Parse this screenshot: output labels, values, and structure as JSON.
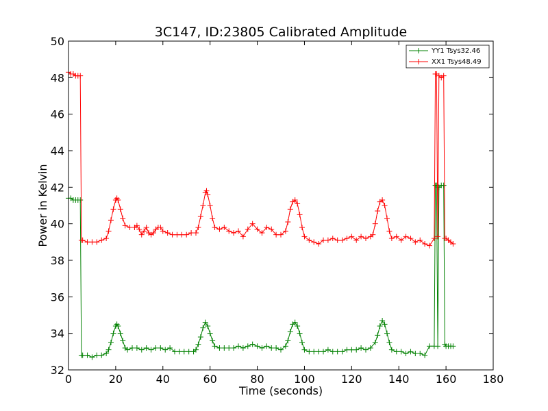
{
  "chart_data": {
    "type": "line",
    "title": "3C147, ID:23805 Calibrated Amplitude",
    "xlabel": "Time (seconds)",
    "ylabel": "Power in Kelvin",
    "xlim": [
      0,
      180
    ],
    "ylim": [
      32,
      50
    ],
    "xticks": [
      0,
      20,
      40,
      60,
      80,
      100,
      120,
      140,
      160,
      180
    ],
    "yticks": [
      32,
      34,
      36,
      38,
      40,
      42,
      44,
      46,
      48,
      50
    ],
    "grid": false,
    "legend_position": "top-right",
    "marker": "+",
    "series": [
      {
        "name": "YY1 Tsys32.46",
        "color": "#008000",
        "points": [
          [
            0,
            41.4
          ],
          [
            1,
            41.4
          ],
          [
            2,
            41.3
          ],
          [
            3,
            41.3
          ],
          [
            4,
            41.3
          ],
          [
            5,
            41.3
          ],
          [
            5.5,
            32.8
          ],
          [
            6,
            32.8
          ],
          [
            8,
            32.8
          ],
          [
            10,
            32.7
          ],
          [
            12,
            32.8
          ],
          [
            14,
            32.8
          ],
          [
            16,
            32.9
          ],
          [
            17,
            33.1
          ],
          [
            18,
            33.5
          ],
          [
            19,
            34.0
          ],
          [
            20,
            34.4
          ],
          [
            20.5,
            34.5
          ],
          [
            21,
            34.4
          ],
          [
            22,
            34.0
          ],
          [
            23,
            33.6
          ],
          [
            24,
            33.2
          ],
          [
            25,
            33.1
          ],
          [
            27,
            33.2
          ],
          [
            29,
            33.2
          ],
          [
            31,
            33.1
          ],
          [
            33,
            33.2
          ],
          [
            35,
            33.1
          ],
          [
            37,
            33.2
          ],
          [
            39,
            33.2
          ],
          [
            41,
            33.1
          ],
          [
            43,
            33.2
          ],
          [
            45,
            33.0
          ],
          [
            47,
            33.0
          ],
          [
            49,
            33.0
          ],
          [
            51,
            33.0
          ],
          [
            53,
            33.0
          ],
          [
            54,
            33.1
          ],
          [
            55,
            33.4
          ],
          [
            56,
            33.8
          ],
          [
            57,
            34.3
          ],
          [
            58,
            34.6
          ],
          [
            59,
            34.4
          ],
          [
            60,
            34.0
          ],
          [
            61,
            33.6
          ],
          [
            62,
            33.3
          ],
          [
            64,
            33.2
          ],
          [
            66,
            33.2
          ],
          [
            68,
            33.2
          ],
          [
            70,
            33.2
          ],
          [
            72,
            33.3
          ],
          [
            74,
            33.2
          ],
          [
            76,
            33.3
          ],
          [
            78,
            33.4
          ],
          [
            80,
            33.3
          ],
          [
            82,
            33.2
          ],
          [
            84,
            33.3
          ],
          [
            86,
            33.2
          ],
          [
            88,
            33.2
          ],
          [
            90,
            33.1
          ],
          [
            92,
            33.3
          ],
          [
            93,
            33.6
          ],
          [
            94,
            34.1
          ],
          [
            95,
            34.5
          ],
          [
            96,
            34.6
          ],
          [
            97,
            34.4
          ],
          [
            98,
            34.0
          ],
          [
            99,
            33.5
          ],
          [
            100,
            33.1
          ],
          [
            102,
            33.0
          ],
          [
            104,
            33.0
          ],
          [
            106,
            33.0
          ],
          [
            108,
            33.0
          ],
          [
            110,
            33.1
          ],
          [
            112,
            33.0
          ],
          [
            114,
            33.0
          ],
          [
            116,
            33.0
          ],
          [
            118,
            33.1
          ],
          [
            120,
            33.1
          ],
          [
            122,
            33.1
          ],
          [
            124,
            33.2
          ],
          [
            126,
            33.1
          ],
          [
            128,
            33.2
          ],
          [
            130,
            33.5
          ],
          [
            131,
            33.9
          ],
          [
            132,
            34.4
          ],
          [
            133,
            34.7
          ],
          [
            134,
            34.5
          ],
          [
            135,
            34.0
          ],
          [
            136,
            33.5
          ],
          [
            137,
            33.1
          ],
          [
            139,
            33.0
          ],
          [
            141,
            33.0
          ],
          [
            143,
            32.9
          ],
          [
            145,
            33.0
          ],
          [
            147,
            32.9
          ],
          [
            149,
            32.9
          ],
          [
            151,
            32.8
          ],
          [
            153,
            33.3
          ],
          [
            155,
            33.3
          ],
          [
            155.5,
            42.1
          ],
          [
            156,
            42.1
          ],
          [
            156.5,
            33.3
          ],
          [
            157,
            42.0
          ],
          [
            158,
            42.1
          ],
          [
            159,
            42.1
          ],
          [
            159.5,
            33.4
          ],
          [
            160,
            33.3
          ],
          [
            161,
            33.3
          ],
          [
            162,
            33.3
          ],
          [
            163,
            33.3
          ]
        ]
      },
      {
        "name": "XX1 Tsys48.49",
        "color": "#ff0000",
        "points": [
          [
            0,
            48.3
          ],
          [
            1,
            48.2
          ],
          [
            2,
            48.2
          ],
          [
            3,
            48.1
          ],
          [
            4,
            48.1
          ],
          [
            5,
            48.1
          ],
          [
            5.5,
            39.1
          ],
          [
            6,
            39.1
          ],
          [
            8,
            39.0
          ],
          [
            10,
            39.0
          ],
          [
            12,
            39.0
          ],
          [
            14,
            39.1
          ],
          [
            16,
            39.2
          ],
          [
            17,
            39.6
          ],
          [
            18,
            40.2
          ],
          [
            19,
            40.8
          ],
          [
            20,
            41.3
          ],
          [
            20.5,
            41.4
          ],
          [
            21,
            41.3
          ],
          [
            22,
            40.8
          ],
          [
            23,
            40.3
          ],
          [
            24,
            39.9
          ],
          [
            26,
            39.8
          ],
          [
            28,
            39.8
          ],
          [
            29,
            39.9
          ],
          [
            30,
            39.7
          ],
          [
            31,
            39.4
          ],
          [
            32,
            39.6
          ],
          [
            33,
            39.8
          ],
          [
            34,
            39.5
          ],
          [
            35,
            39.4
          ],
          [
            36,
            39.5
          ],
          [
            37,
            39.7
          ],
          [
            38,
            39.8
          ],
          [
            39,
            39.8
          ],
          [
            40,
            39.6
          ],
          [
            42,
            39.5
          ],
          [
            44,
            39.4
          ],
          [
            46,
            39.4
          ],
          [
            48,
            39.4
          ],
          [
            50,
            39.4
          ],
          [
            52,
            39.5
          ],
          [
            54,
            39.5
          ],
          [
            55,
            39.8
          ],
          [
            56,
            40.4
          ],
          [
            57,
            41.0
          ],
          [
            58,
            41.7
          ],
          [
            58.5,
            41.8
          ],
          [
            59,
            41.6
          ],
          [
            60,
            41.0
          ],
          [
            61,
            40.3
          ],
          [
            62,
            39.8
          ],
          [
            64,
            39.7
          ],
          [
            66,
            39.8
          ],
          [
            68,
            39.6
          ],
          [
            70,
            39.5
          ],
          [
            72,
            39.6
          ],
          [
            74,
            39.3
          ],
          [
            76,
            39.7
          ],
          [
            78,
            40.0
          ],
          [
            80,
            39.7
          ],
          [
            82,
            39.5
          ],
          [
            84,
            39.8
          ],
          [
            86,
            39.7
          ],
          [
            88,
            39.4
          ],
          [
            90,
            39.4
          ],
          [
            92,
            39.6
          ],
          [
            93,
            40.1
          ],
          [
            94,
            40.8
          ],
          [
            95,
            41.2
          ],
          [
            96,
            41.3
          ],
          [
            97,
            41.1
          ],
          [
            98,
            40.5
          ],
          [
            99,
            39.8
          ],
          [
            100,
            39.3
          ],
          [
            102,
            39.1
          ],
          [
            104,
            39.0
          ],
          [
            106,
            38.9
          ],
          [
            108,
            39.1
          ],
          [
            110,
            39.1
          ],
          [
            112,
            39.2
          ],
          [
            114,
            39.1
          ],
          [
            116,
            39.1
          ],
          [
            118,
            39.2
          ],
          [
            120,
            39.3
          ],
          [
            122,
            39.1
          ],
          [
            124,
            39.3
          ],
          [
            126,
            39.2
          ],
          [
            128,
            39.3
          ],
          [
            129,
            39.4
          ],
          [
            130,
            40.0
          ],
          [
            131,
            40.7
          ],
          [
            132,
            41.2
          ],
          [
            133,
            41.3
          ],
          [
            134,
            41.0
          ],
          [
            135,
            40.3
          ],
          [
            136,
            39.6
          ],
          [
            137,
            39.2
          ],
          [
            139,
            39.3
          ],
          [
            141,
            39.1
          ],
          [
            143,
            39.3
          ],
          [
            145,
            39.2
          ],
          [
            147,
            39.0
          ],
          [
            149,
            39.1
          ],
          [
            151,
            38.9
          ],
          [
            153,
            38.8
          ],
          [
            155,
            39.2
          ],
          [
            155.5,
            48.2
          ],
          [
            156,
            48.2
          ],
          [
            156.5,
            39.3
          ],
          [
            157,
            48.1
          ],
          [
            158,
            48.0
          ],
          [
            159,
            48.1
          ],
          [
            159.5,
            39.2
          ],
          [
            160,
            39.2
          ],
          [
            161,
            39.1
          ],
          [
            162,
            39.0
          ],
          [
            163,
            38.9
          ]
        ]
      }
    ]
  }
}
